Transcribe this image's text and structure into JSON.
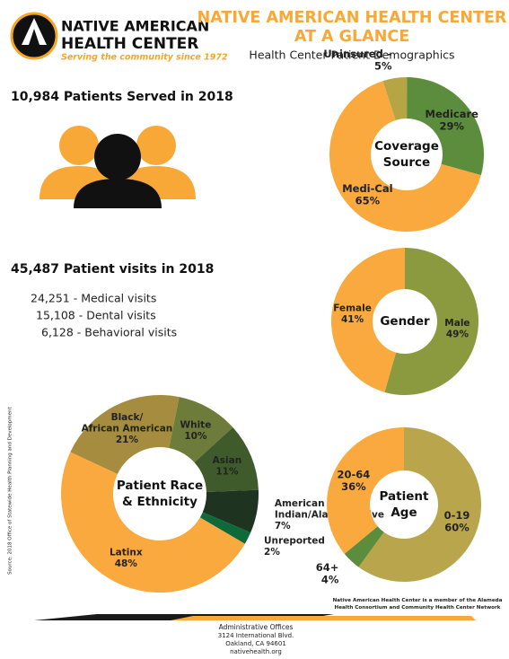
{
  "header": {
    "org_name": [
      "NATIVE AMERICAN",
      "HEALTH CENTER"
    ],
    "tagline": "Serving the community since 1972",
    "title": [
      "NATIVE AMERICAN HEALTH CENTER",
      "AT A GLANCE"
    ],
    "subtitle": "Health Center Patient Demographics"
  },
  "stats": {
    "patients": "10,984 Patients  Served  in 2018",
    "visits": "45,487 Patient visits in 2018",
    "visit_lines": [
      "24,251 - Medical visits",
      "15,108 - Dental visits",
      "6,128 - Behavioral visits"
    ]
  },
  "chart_data": [
    {
      "type": "pie",
      "title": [
        "Coverage",
        "Source"
      ],
      "categories": [
        "Uninsured –",
        "Medicare",
        "Medi-Cal"
      ],
      "values": [
        5,
        29,
        65
      ],
      "value_labels": [
        "5%",
        "29%",
        "65%"
      ],
      "colors": [
        "#b5a545",
        "#5c8d3c",
        "#f9a93d"
      ]
    },
    {
      "type": "pie",
      "title": [
        "Gender"
      ],
      "categories": [
        "Male",
        "Female"
      ],
      "values": [
        49,
        41
      ],
      "value_labels": [
        "49%",
        "41%"
      ],
      "colors": [
        "#8b9a3e",
        "#f9a93d"
      ]
    },
    {
      "type": "pie",
      "title": [
        "Patient Race",
        "& Ethnicity"
      ],
      "categories": [
        [
          "Black/",
          "African American"
        ],
        "White",
        "Asian",
        [
          "American",
          "Indian/Alaska Native"
        ],
        "Unreported",
        "Latinx"
      ],
      "values": [
        21,
        10,
        11,
        7,
        2,
        48
      ],
      "value_labels": [
        "21%",
        "10%",
        "11%",
        "7%",
        "2%",
        "48%"
      ],
      "colors": [
        "#a58c3e",
        "#6d7c3a",
        "#405b2b",
        "#1f3321",
        "#0e6a3b",
        "#f9a93d"
      ]
    },
    {
      "type": "pie",
      "title": [
        "Patient",
        "Age"
      ],
      "categories": [
        "0-19",
        "64+",
        "20-64"
      ],
      "values": [
        60,
        4,
        36
      ],
      "value_labels": [
        "60%",
        "4%",
        "36%"
      ],
      "colors": [
        "#b9a64c",
        "#5c8d3c",
        "#f9a93d"
      ]
    }
  ],
  "footer": {
    "source": "Source: 2018 Office of Statewide Health Planning and Development",
    "member_note": "Native American Health Center is a member of the Alameda Health Consortium and Community Health Center Network",
    "address": [
      "Administrative Offices",
      "3124 International Blvd.",
      "Oakland, CA 94601",
      "nativehealth.org"
    ]
  }
}
